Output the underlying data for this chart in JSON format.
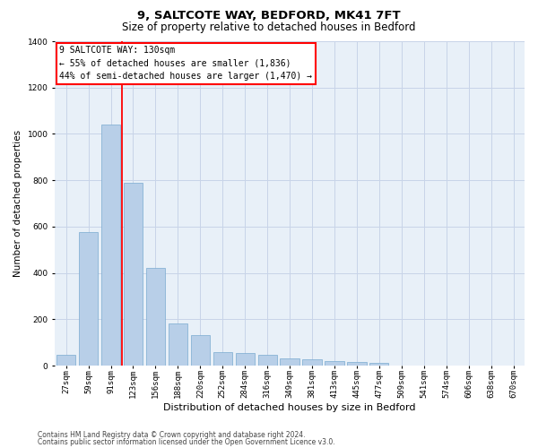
{
  "title_line1": "9, SALTCOTE WAY, BEDFORD, MK41 7FT",
  "title_line2": "Size of property relative to detached houses in Bedford",
  "xlabel": "Distribution of detached houses by size in Bedford",
  "ylabel": "Number of detached properties",
  "categories": [
    "27sqm",
    "59sqm",
    "91sqm",
    "123sqm",
    "156sqm",
    "188sqm",
    "220sqm",
    "252sqm",
    "284sqm",
    "316sqm",
    "349sqm",
    "381sqm",
    "413sqm",
    "445sqm",
    "477sqm",
    "509sqm",
    "541sqm",
    "574sqm",
    "606sqm",
    "638sqm",
    "670sqm"
  ],
  "values": [
    45,
    575,
    1040,
    790,
    420,
    180,
    130,
    60,
    55,
    45,
    30,
    27,
    20,
    15,
    11,
    0,
    0,
    0,
    0,
    0,
    0
  ],
  "bar_color": "#b8cfe8",
  "bar_edgecolor": "#7aaad0",
  "vline_index": 3,
  "vline_color": "red",
  "ylim": [
    0,
    1400
  ],
  "yticks": [
    0,
    200,
    400,
    600,
    800,
    1000,
    1200,
    1400
  ],
  "annotation_text": "9 SALTCOTE WAY: 130sqm\n← 55% of detached houses are smaller (1,836)\n44% of semi-detached houses are larger (1,470) →",
  "footer_line1": "Contains HM Land Registry data © Crown copyright and database right 2024.",
  "footer_line2": "Contains public sector information licensed under the Open Government Licence v3.0.",
  "grid_color": "#c8d4e8",
  "plot_bg": "#e8f0f8",
  "title1_fontsize": 9.5,
  "title2_fontsize": 8.5,
  "xlabel_fontsize": 8,
  "ylabel_fontsize": 7.5,
  "tick_fontsize": 6.5,
  "annot_fontsize": 7,
  "footer_fontsize": 5.5
}
